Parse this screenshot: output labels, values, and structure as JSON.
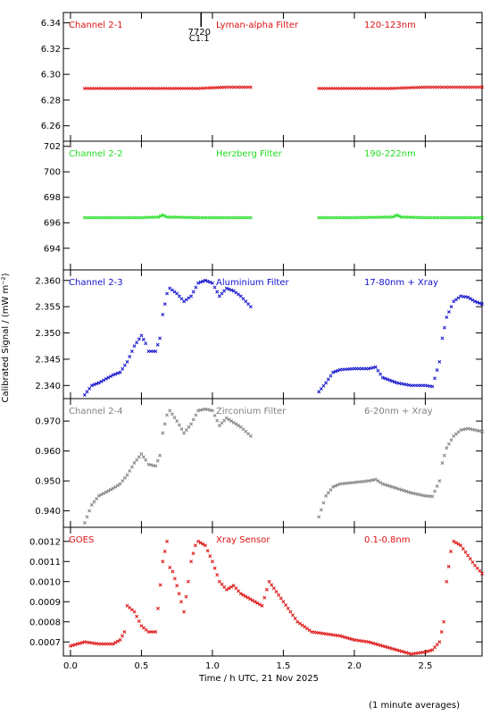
{
  "chart_data": [
    {
      "type": "scatter",
      "channel_label": "Channel 2-1",
      "filter_label": "Lyman-alpha Filter",
      "band_label": "120-123nm",
      "color": "#dd1111",
      "ylim": [
        6.248,
        6.348
      ],
      "yticks": [
        "6.26",
        "6.28",
        "6.30",
        "6.32",
        "6.34"
      ],
      "ytick_values": [
        6.26,
        6.28,
        6.3,
        6.32,
        6.34
      ],
      "marker": {
        "x": 0.92,
        "label_top": "7720",
        "label_bottom": "C1.1"
      },
      "series": [
        {
          "x": [
            0.1,
            0.3,
            0.5,
            0.7,
            0.9,
            1.1,
            1.27
          ],
          "y": [
            6.289,
            6.289,
            6.289,
            6.289,
            6.289,
            6.29,
            6.29
          ]
        },
        {
          "x": [
            1.75,
            2.0,
            2.25,
            2.5,
            2.75,
            2.9
          ],
          "y": [
            6.289,
            6.289,
            6.289,
            6.29,
            6.29,
            6.29
          ]
        }
      ]
    },
    {
      "type": "scatter",
      "channel_label": "Channel 2-2",
      "filter_label": "Herzberg Filter",
      "band_label": "190-222nm",
      "color": "#22dd22",
      "ylim": [
        692.3,
        702.4
      ],
      "yticks": [
        "694",
        "696",
        "698",
        "700",
        "702"
      ],
      "ytick_values": [
        694,
        696,
        698,
        700,
        702
      ],
      "series": [
        {
          "x": [
            0.1,
            0.3,
            0.5,
            0.62,
            0.65,
            0.68,
            0.9,
            1.1,
            1.27
          ],
          "y": [
            696.4,
            696.4,
            696.4,
            696.45,
            696.6,
            696.45,
            696.4,
            696.4,
            696.4
          ]
        },
        {
          "x": [
            1.75,
            2.0,
            2.27,
            2.3,
            2.33,
            2.5,
            2.75,
            2.9
          ],
          "y": [
            696.4,
            696.4,
            696.45,
            696.6,
            696.45,
            696.4,
            696.4,
            696.4
          ]
        }
      ]
    },
    {
      "type": "scatter",
      "channel_label": "Channel 2-3",
      "filter_label": "Aluminium Filter",
      "band_label": "17-80nm + Xray",
      "color": "#1111cc",
      "ylim": [
        2.3375,
        2.362
      ],
      "yticks": [
        "2.340",
        "2.345",
        "2.350",
        "2.355",
        "2.360"
      ],
      "ytick_values": [
        2.34,
        2.345,
        2.35,
        2.355,
        2.36
      ],
      "series": [
        {
          "x": [
            0.1,
            0.15,
            0.2,
            0.3,
            0.35,
            0.4,
            0.45,
            0.5,
            0.53,
            0.55,
            0.6,
            0.63,
            0.65,
            0.68,
            0.7,
            0.75,
            0.8,
            0.85,
            0.9,
            0.95,
            1.0,
            1.05,
            1.1,
            1.15,
            1.2,
            1.27
          ],
          "y": [
            2.3382,
            2.34,
            2.3405,
            2.342,
            2.3425,
            2.3445,
            2.3475,
            2.3495,
            2.348,
            2.3465,
            2.3465,
            2.349,
            2.3535,
            2.3575,
            2.3585,
            2.3575,
            2.356,
            2.357,
            2.3595,
            2.36,
            2.3595,
            2.357,
            2.3585,
            2.358,
            2.357,
            2.355
          ]
        },
        {
          "x": [
            1.75,
            1.8,
            1.85,
            1.9,
            2.0,
            2.1,
            2.15,
            2.2,
            2.3,
            2.4,
            2.5,
            2.55,
            2.6,
            2.62,
            2.65,
            2.7,
            2.75,
            2.8,
            2.85,
            2.9
          ],
          "y": [
            2.3388,
            2.3405,
            2.3425,
            2.343,
            2.3432,
            2.3432,
            2.3435,
            2.3415,
            2.3405,
            2.34,
            2.34,
            2.3398,
            2.3445,
            2.349,
            2.353,
            2.356,
            2.357,
            2.3568,
            2.356,
            2.3555
          ]
        }
      ]
    },
    {
      "type": "scatter",
      "channel_label": "Channel 2-4",
      "filter_label": "Zirconium Filter",
      "band_label": "6-20nm + Xray",
      "color": "#808080",
      "ylim": [
        0.9345,
        0.9775
      ],
      "yticks": [
        "0.940",
        "0.950",
        "0.960",
        "0.970"
      ],
      "ytick_values": [
        0.94,
        0.95,
        0.96,
        0.97
      ],
      "series": [
        {
          "x": [
            0.1,
            0.15,
            0.2,
            0.3,
            0.35,
            0.4,
            0.45,
            0.5,
            0.53,
            0.55,
            0.6,
            0.63,
            0.65,
            0.68,
            0.7,
            0.75,
            0.8,
            0.85,
            0.9,
            0.95,
            1.0,
            1.05,
            1.1,
            1.15,
            1.2,
            1.27
          ],
          "y": [
            0.936,
            0.942,
            0.945,
            0.9475,
            0.949,
            0.952,
            0.956,
            0.959,
            0.957,
            0.9555,
            0.955,
            0.9585,
            0.966,
            0.972,
            0.9735,
            0.97,
            0.966,
            0.969,
            0.9735,
            0.974,
            0.9735,
            0.9685,
            0.971,
            0.9695,
            0.968,
            0.965
          ]
        },
        {
          "x": [
            1.75,
            1.8,
            1.85,
            1.9,
            2.0,
            2.1,
            2.15,
            2.2,
            2.3,
            2.4,
            2.5,
            2.55,
            2.6,
            2.62,
            2.65,
            2.7,
            2.75,
            2.8,
            2.85,
            2.9
          ],
          "y": [
            0.938,
            0.945,
            0.948,
            0.949,
            0.9495,
            0.95,
            0.9505,
            0.949,
            0.9475,
            0.946,
            0.945,
            0.9448,
            0.95,
            0.956,
            0.961,
            0.965,
            0.967,
            0.9675,
            0.967,
            0.9665
          ]
        }
      ]
    },
    {
      "type": "scatter",
      "channel_label": "GOES",
      "filter_label": "Xray Sensor",
      "band_label": "0.1-0.8nm",
      "color": "#dd1111",
      "ylim": [
        0.00063,
        0.00127
      ],
      "yticks": [
        "0.0007",
        "0.0008",
        "0.0009",
        "0.0010",
        "0.0011",
        "0.0012"
      ],
      "ytick_values": [
        0.0007,
        0.0008,
        0.0009,
        0.001,
        0.0011,
        0.0012
      ],
      "series": [
        {
          "x": [
            0.0,
            0.1,
            0.2,
            0.3,
            0.35,
            0.38,
            0.4,
            0.45,
            0.5,
            0.55,
            0.6,
            0.65,
            0.68,
            0.7,
            0.72,
            0.75,
            0.78,
            0.8,
            0.83,
            0.85,
            0.88,
            0.9,
            0.95,
            1.0,
            1.05,
            1.1,
            1.15,
            1.2,
            1.25,
            1.3,
            1.35,
            1.4,
            1.45,
            1.5,
            1.55,
            1.6,
            1.7,
            1.8,
            1.9,
            2.0,
            2.1,
            2.2,
            2.3,
            2.4,
            2.5,
            2.55,
            2.6,
            2.63,
            2.65,
            2.68,
            2.7,
            2.75,
            2.8,
            2.85,
            2.9
          ],
          "y": [
            0.00068,
            0.0007,
            0.00069,
            0.00069,
            0.00071,
            0.00075,
            0.00088,
            0.00085,
            0.00078,
            0.00075,
            0.00075,
            0.0011,
            0.0012,
            0.00107,
            0.00105,
            0.00098,
            0.0009,
            0.00085,
            0.001,
            0.0011,
            0.00118,
            0.0012,
            0.00118,
            0.0011,
            0.001,
            0.00096,
            0.00098,
            0.00094,
            0.00092,
            0.0009,
            0.00088,
            0.001,
            0.00095,
            0.0009,
            0.00085,
            0.0008,
            0.00075,
            0.00074,
            0.00073,
            0.00071,
            0.0007,
            0.00068,
            0.00066,
            0.00064,
            0.00065,
            0.00066,
            0.0007,
            0.0008,
            0.001,
            0.00115,
            0.0012,
            0.00118,
            0.00113,
            0.00108,
            0.00104
          ]
        }
      ]
    }
  ],
  "axes": {
    "xlabel": "Time / h UTC, 21 Nov 2025",
    "ylabel": "Calibrated Signal / (mW m⁻²)",
    "xlim": [
      -0.05,
      2.9
    ],
    "xticks": [
      "0.0",
      "0.5",
      "1.0",
      "1.5",
      "2.0",
      "2.5"
    ],
    "xtick_values": [
      0.0,
      0.5,
      1.0,
      1.5,
      2.0,
      2.5
    ]
  },
  "footnote": "(1 minute averages)"
}
